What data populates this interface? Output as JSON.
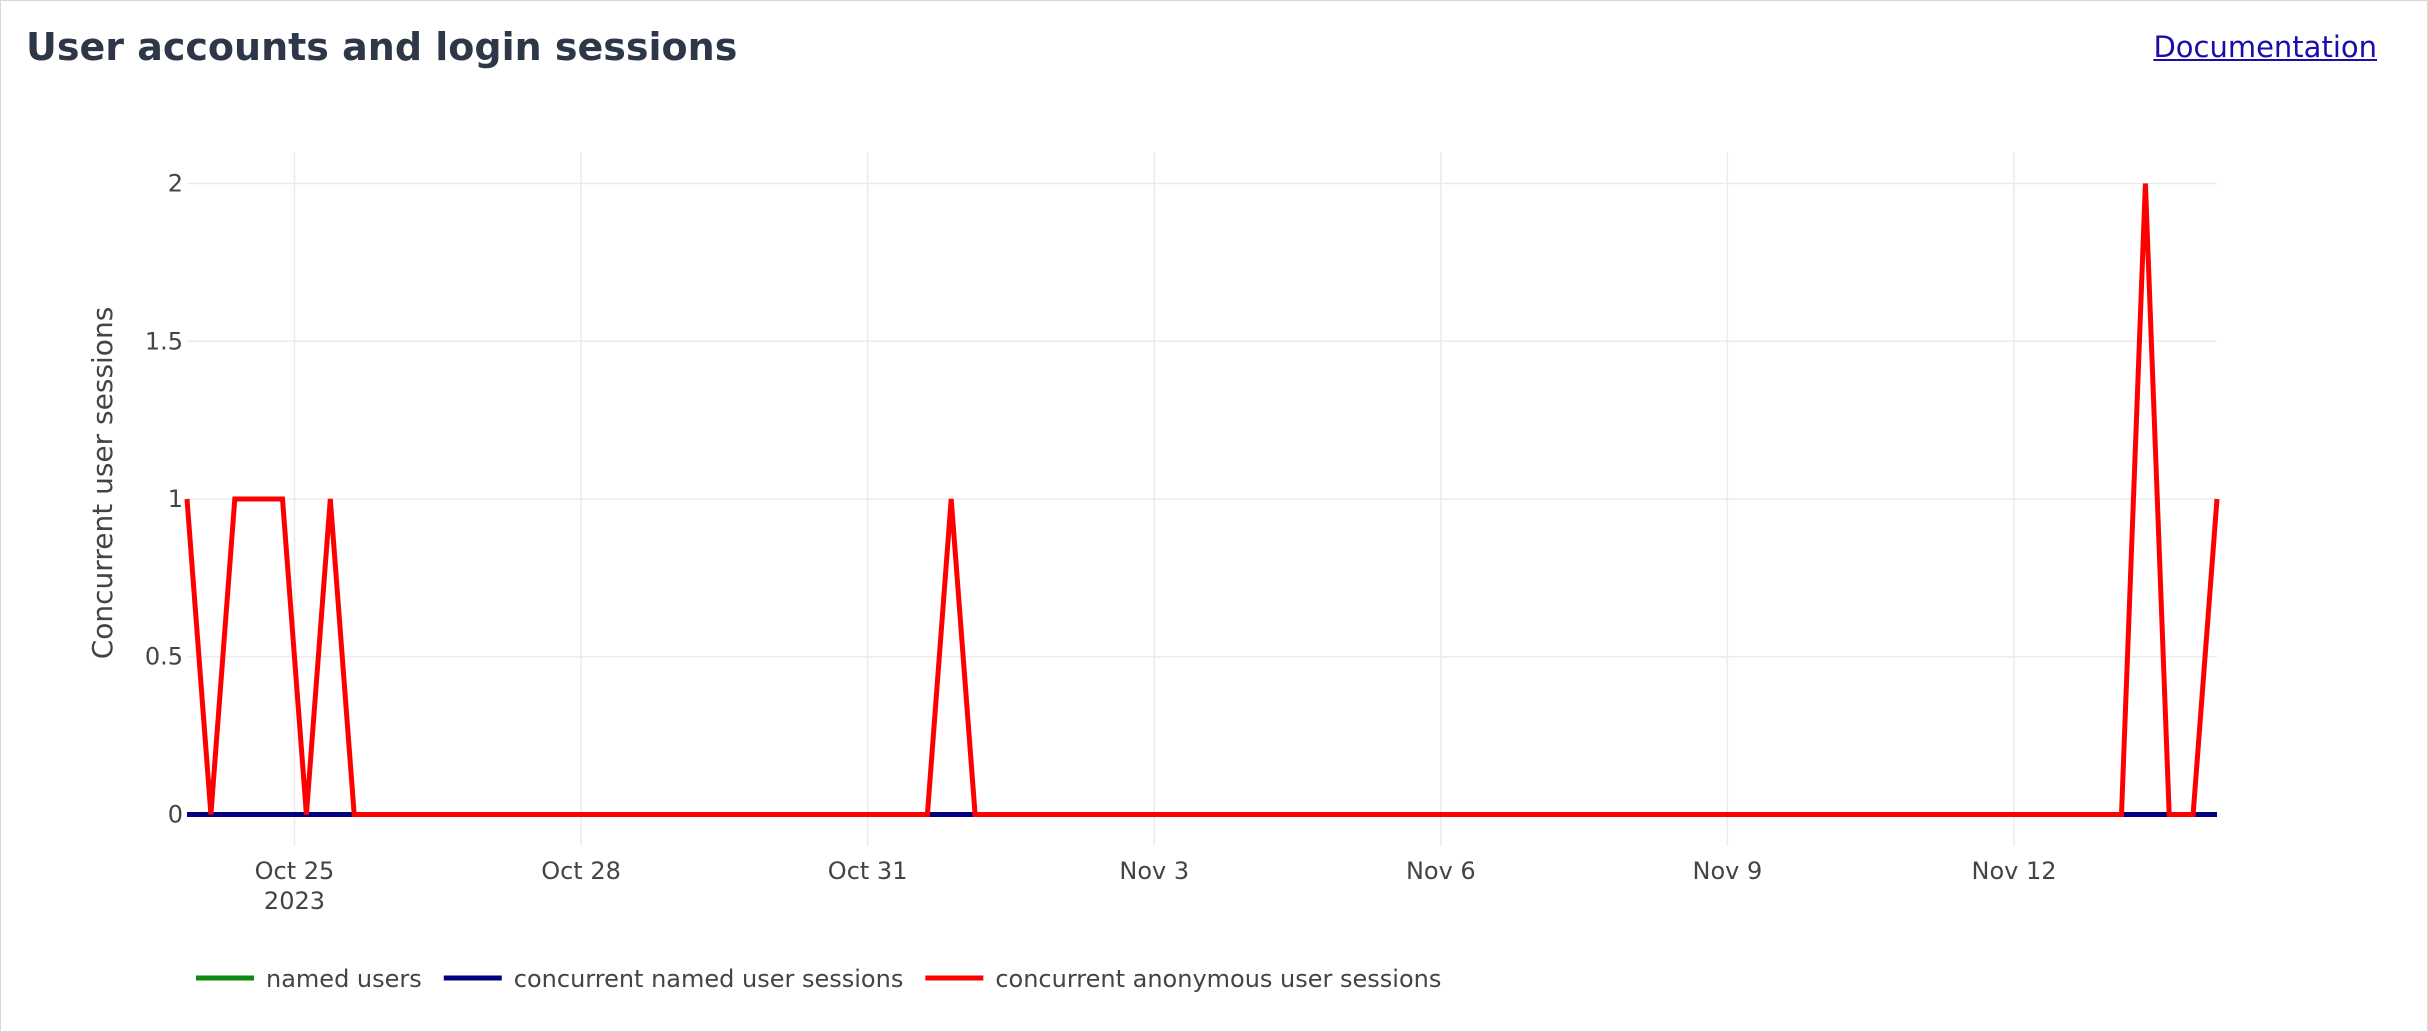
{
  "header": {
    "title": "User accounts and login sessions",
    "doc_link": "Documentation"
  },
  "chart_data": {
    "type": "line",
    "title": "",
    "xlabel": "",
    "ylabel": "Concurrent user sessions",
    "x_ticks": [
      "Oct 25",
      "Oct 28",
      "Oct 31",
      "Nov 3",
      "Nov 6",
      "Nov 9",
      "Nov 12"
    ],
    "x_tick_year": "2023",
    "y_ticks": [
      "0",
      "0.5",
      "1",
      "1.5",
      "2"
    ],
    "xlim": [
      "2023-10-23 21:00",
      "2023-11-14 03:00"
    ],
    "ylim": [
      -0.1,
      2.1
    ],
    "grid": true,
    "legend_position": "bottom",
    "x": [
      "2023-10-23 21:00",
      "2023-10-24 03:00",
      "2023-10-24 09:00",
      "2023-10-24 15:00",
      "2023-10-24 21:00",
      "2023-10-25 03:00",
      "2023-10-25 09:00",
      "2023-10-25 15:00",
      "2023-10-25 21:00",
      "2023-10-31 15:00",
      "2023-10-31 21:00",
      "2023-11-01 03:00",
      "2023-11-13 03:00",
      "2023-11-13 09:00",
      "2023-11-13 15:00",
      "2023-11-13 21:00",
      "2023-11-14 03:00"
    ],
    "series": [
      {
        "name": "named users",
        "color": "#118811",
        "values": [
          0,
          0,
          0,
          0,
          0,
          0,
          0,
          0,
          0,
          0,
          0,
          0,
          0,
          0,
          0,
          0,
          0
        ]
      },
      {
        "name": "concurrent named user sessions",
        "color": "#000080",
        "values": [
          0,
          0,
          0,
          0,
          0,
          0,
          0,
          0,
          0,
          0,
          0,
          0,
          0,
          0,
          0,
          0,
          0
        ]
      },
      {
        "name": "concurrent anonymous user sessions",
        "color": "#ff0000",
        "values": [
          1,
          0,
          1,
          1,
          1,
          0,
          1,
          0,
          0,
          0,
          1,
          0,
          0,
          2,
          0,
          0,
          1
        ]
      }
    ]
  }
}
